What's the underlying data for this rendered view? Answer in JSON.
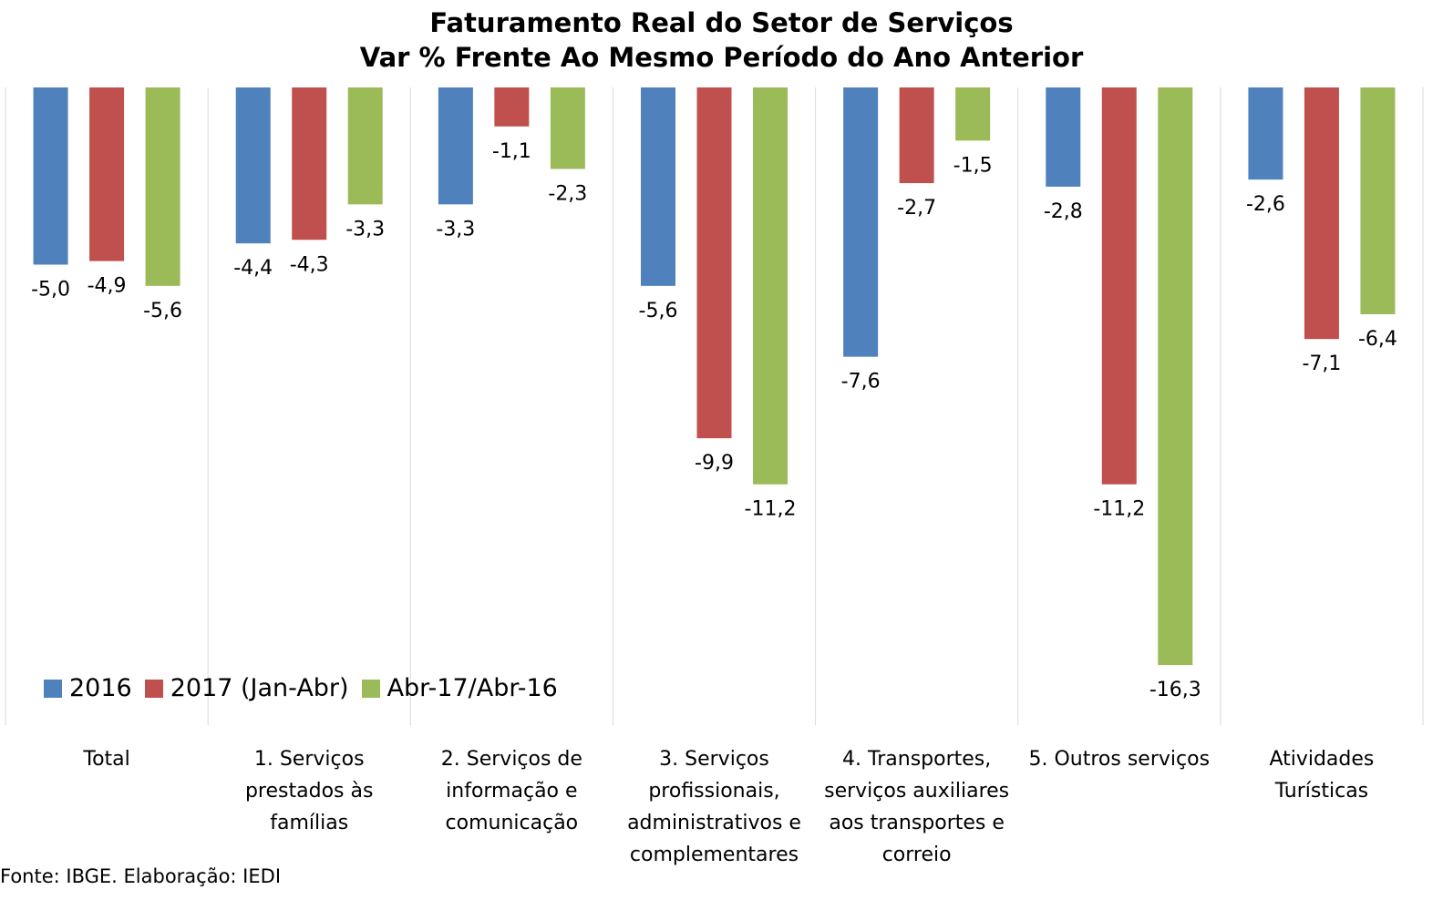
{
  "chart_data": {
    "type": "bar",
    "title_line1": "Faturamento Real do Setor de Serviços",
    "title_line2": "Var % Frente Ao Mesmo Período do Ano Anterior",
    "categories": [
      [
        "Total"
      ],
      [
        "1. Serviços",
        "prestados às",
        "famílias"
      ],
      [
        "2. Serviços de",
        "informação e",
        "comunicação"
      ],
      [
        "3. Serviços",
        "profissionais,",
        "administrativos e",
        "complementares"
      ],
      [
        "4. Transportes,",
        "serviços auxiliares",
        "aos transportes e",
        "correio"
      ],
      [
        "5. Outros serviços"
      ],
      [
        "Atividades",
        "Turísticas"
      ]
    ],
    "series": [
      {
        "name": "2016",
        "color": "#4f81bd",
        "values": [
          -5.0,
          -4.4,
          -3.3,
          -5.6,
          -7.6,
          -2.8,
          -2.6
        ],
        "labels": [
          "-5,0",
          "-4,4",
          "-3,3",
          "-5,6",
          "-7,6",
          "-2,8",
          "-2,6"
        ]
      },
      {
        "name": "2017 (Jan-Abr)",
        "color": "#c0504d",
        "values": [
          -4.9,
          -4.3,
          -1.1,
          -9.9,
          -2.7,
          -11.2,
          -7.1
        ],
        "labels": [
          "-4,9",
          "-4,3",
          "-1,1",
          "-9,9",
          "-2,7",
          "-11,2",
          "-7,1"
        ]
      },
      {
        "name": "Abr-17/Abr-16",
        "color": "#9bbb59",
        "values": [
          -5.6,
          -3.3,
          -2.3,
          -11.2,
          -1.5,
          -16.3,
          -6.4
        ],
        "labels": [
          "-5,6",
          "-3,3",
          "-2,3",
          "-11,2",
          "-1,5",
          "-16,3",
          "-6,4"
        ]
      }
    ],
    "ylim": [
      -18,
      0
    ],
    "grid": "vertical category separators",
    "legend": "bottom-left inside plot"
  },
  "source_text": "Fonte: IBGE. Elaboração: IEDI"
}
